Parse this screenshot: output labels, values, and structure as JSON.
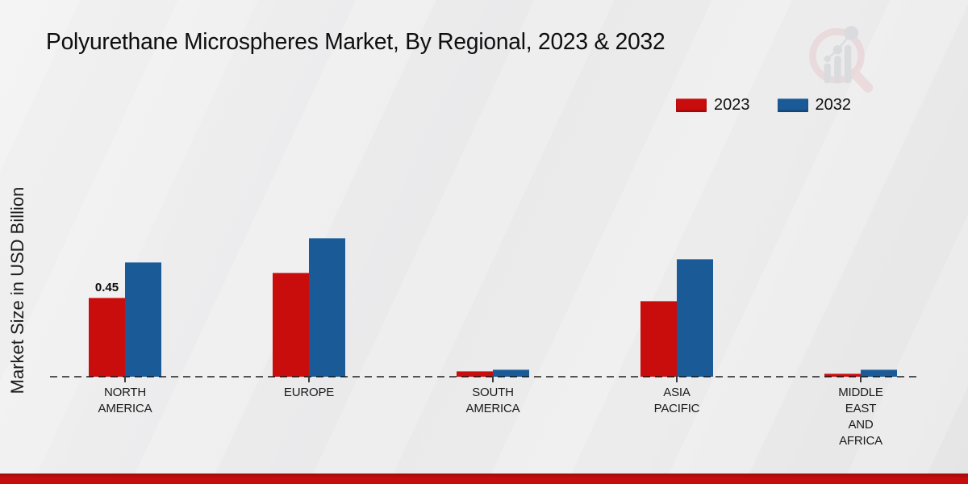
{
  "title": "Polyurethane Microspheres Market, By Regional, 2023 & 2032",
  "logo_icon": "magnifier-bar-chart-watermark",
  "footer": {
    "accent_color": "#c40d0d"
  },
  "chart_data": {
    "type": "bar",
    "title": "Polyurethane Microspheres Market, By Regional, 2023 & 2032",
    "ylabel": "Market Size in USD Billion",
    "xlabel": "",
    "categories": [
      "NORTH AMERICA",
      "EUROPE",
      "SOUTH AMERICA",
      "ASIA PACIFIC",
      "MIDDLE EAST AND AFRICA"
    ],
    "category_lines": [
      [
        "NORTH",
        "AMERICA"
      ],
      [
        "EUROPE"
      ],
      [
        "SOUTH",
        "AMERICA"
      ],
      [
        "ASIA",
        "PACIFIC"
      ],
      [
        "MIDDLE",
        "EAST",
        "AND",
        "AFRICA"
      ]
    ],
    "series": [
      {
        "name": "2023",
        "color": "#c90d0d",
        "values": [
          0.45,
          0.59,
          0.03,
          0.43,
          0.02
        ]
      },
      {
        "name": "2032",
        "color": "#1a5a96",
        "values": [
          0.65,
          0.79,
          0.04,
          0.67,
          0.04
        ]
      }
    ],
    "annotations": [
      {
        "series_index": 0,
        "category_index": 0,
        "text": "0.45"
      }
    ],
    "ylim": [
      0,
      0.85
    ],
    "grid": false,
    "baseline_style": "dashed",
    "legend_position": "top-right",
    "axis_dash_color": "#3c3c3c"
  }
}
